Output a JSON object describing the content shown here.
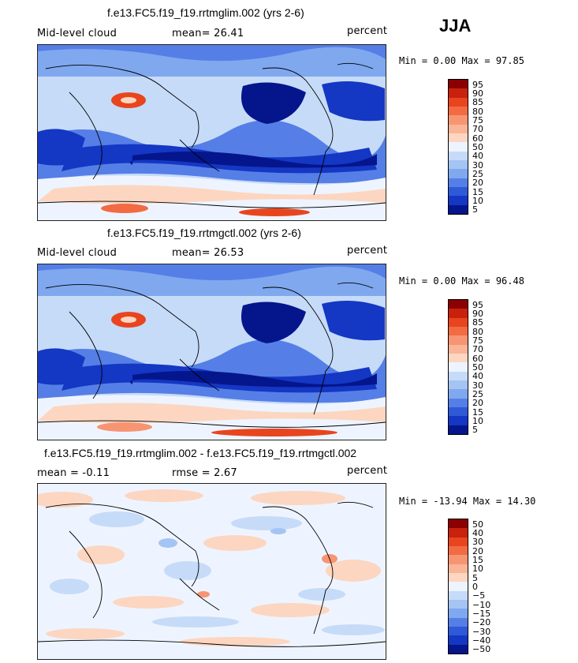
{
  "season": "JJA",
  "panels": [
    {
      "title": "f.e13.FC5.f19_f19.rrtmglim.002 (yrs 2-6)",
      "left_label": "Mid-level cloud",
      "stat1": "mean=  26.41",
      "units": "percent",
      "minmax": "Min =   0.00 Max =  97.85"
    },
    {
      "title": "f.e13.FC5.f19_f19.rrtmgctl.002 (yrs 2-6)",
      "left_label": "Mid-level cloud",
      "stat1": "mean=  26.53",
      "units": "percent",
      "minmax": "Min =   0.00 Max =  96.48"
    },
    {
      "title": "f.e13.FC5.f19_f19.rrtmglim.002 - f.e13.FC5.f19_f19.rrtmgctl.002",
      "left_label": "mean =  -0.11",
      "stat1": "rmse =   2.67",
      "units": "percent",
      "minmax": "Min = -13.94 Max =  14.30"
    }
  ],
  "chart_data": [
    {
      "type": "heatmap",
      "title": "f.e13.FC5.f19_f19.rrtmglim.002 (yrs 2-6)",
      "variable": "Mid-level cloud",
      "units": "percent",
      "mean": 26.41,
      "min": 0.0,
      "max": 97.85,
      "colorbar_levels": [
        95,
        90,
        85,
        80,
        75,
        70,
        60,
        50,
        40,
        30,
        25,
        20,
        15,
        10,
        5
      ],
      "colorbar_colors": [
        "#8b0000",
        "#c8220c",
        "#e8451e",
        "#f26b43",
        "#f79572",
        "#f9b596",
        "#fcd6c0",
        "#eef4ff",
        "#c6dbf8",
        "#a4c4f4",
        "#7fa8ef",
        "#557fe6",
        "#2e5ad8",
        "#1437c4",
        "#05158c"
      ]
    },
    {
      "type": "heatmap",
      "title": "f.e13.FC5.f19_f19.rrtmgctl.002 (yrs 2-6)",
      "variable": "Mid-level cloud",
      "units": "percent",
      "mean": 26.53,
      "min": 0.0,
      "max": 96.48,
      "colorbar_levels": [
        95,
        90,
        85,
        80,
        75,
        70,
        60,
        50,
        40,
        30,
        25,
        20,
        15,
        10,
        5
      ],
      "colorbar_colors": [
        "#8b0000",
        "#c8220c",
        "#e8451e",
        "#f26b43",
        "#f79572",
        "#f9b596",
        "#fcd6c0",
        "#eef4ff",
        "#c6dbf8",
        "#a4c4f4",
        "#7fa8ef",
        "#557fe6",
        "#2e5ad8",
        "#1437c4",
        "#05158c"
      ]
    },
    {
      "type": "heatmap",
      "title": "f.e13.FC5.f19_f19.rrtmglim.002 - f.e13.FC5.f19_f19.rrtmgctl.002",
      "units": "percent",
      "mean": -0.11,
      "rmse": 2.67,
      "min": -13.94,
      "max": 14.3,
      "colorbar_levels": [
        50,
        40,
        30,
        20,
        15,
        10,
        5,
        0,
        -5,
        -10,
        -15,
        -20,
        -30,
        -40,
        -50
      ],
      "colorbar_colors": [
        "#8b0000",
        "#c8220c",
        "#e8451e",
        "#f26b43",
        "#f79572",
        "#f9b596",
        "#fcd6c0",
        "#eef4ff",
        "#c6dbf8",
        "#a4c4f4",
        "#7fa8ef",
        "#557fe6",
        "#2e5ad8",
        "#1437c4",
        "#05158c"
      ]
    }
  ]
}
